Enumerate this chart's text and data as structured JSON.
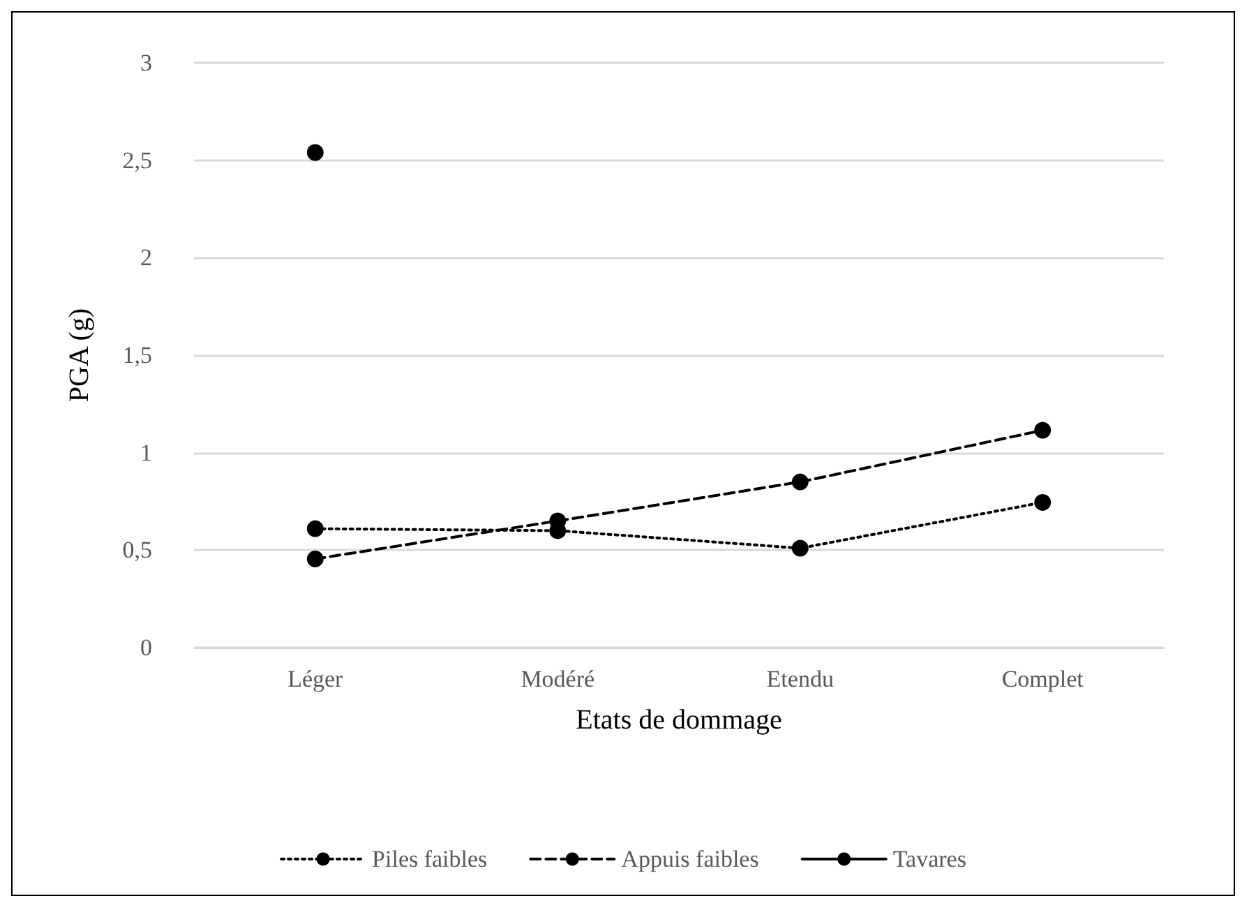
{
  "chart_data": {
    "type": "line",
    "xlabel": "Etats de dommage",
    "ylabel": "PGA (g)",
    "categories": [
      "Léger",
      "Modéré",
      "Etendu",
      "Complet"
    ],
    "series": [
      {
        "name": "Piles faibles",
        "color": "#000000",
        "line_style": "dotted",
        "values": [
          0.61,
          0.6,
          0.51,
          0.745
        ]
      },
      {
        "name": "Appuis faibles",
        "color": "#000000",
        "line_style": "dashed",
        "values": [
          0.455,
          0.65,
          0.85,
          1.115
        ]
      },
      {
        "name": "Tavares",
        "color": "#000000",
        "line_style": "solid",
        "values": [
          2.54,
          null,
          null,
          null
        ]
      }
    ],
    "ylim": [
      0,
      3
    ],
    "yticks": [
      0,
      {
        "value": 0.5,
        "label": "0,5"
      },
      1,
      {
        "value": 1.5,
        "label": "1,5"
      },
      2,
      {
        "value": 2.5,
        "label": "2,5"
      },
      3
    ],
    "grid": "y",
    "legend": "bottom",
    "marker": "circle"
  }
}
